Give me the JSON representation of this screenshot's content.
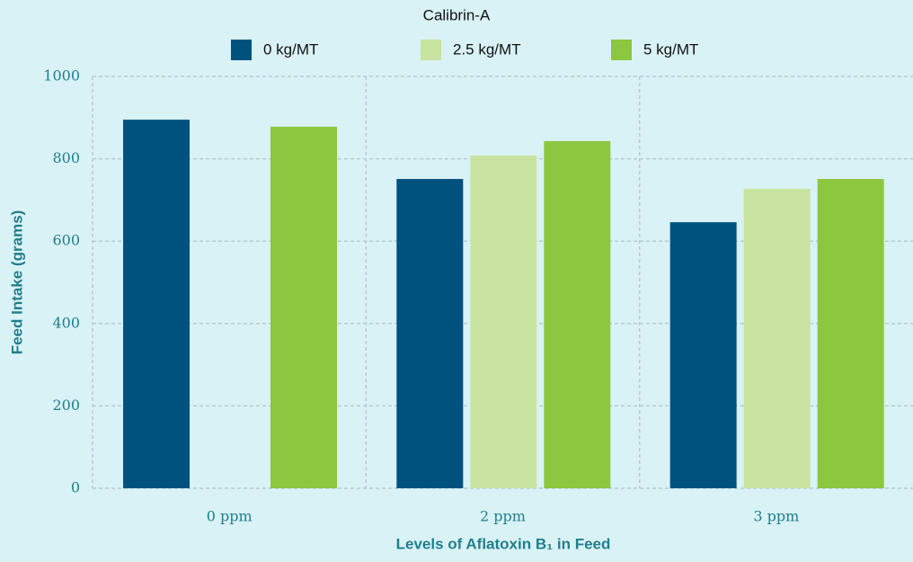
{
  "chart_data": {
    "type": "bar",
    "legend_title": "Calibrin-A",
    "xlabel": "Levels of Aflatoxin B₁ in Feed",
    "ylabel": "Feed Intake (grams)",
    "categories": [
      "0 ppm",
      "2 ppm",
      "3 ppm"
    ],
    "series": [
      {
        "name": "0 kg/MT",
        "color": "#00527e",
        "values": [
          895,
          751,
          646
        ]
      },
      {
        "name": "2.5 kg/MT",
        "color": "#c8e4a0",
        "values": [
          null,
          808,
          727
        ]
      },
      {
        "name": "5 kg/MT",
        "color": "#8dc63f",
        "values": [
          878,
          843,
          751
        ]
      }
    ],
    "ylim": [
      0,
      1000
    ],
    "yticks": [
      0,
      200,
      400,
      600,
      800,
      1000
    ],
    "grid": true,
    "legend": "top"
  }
}
